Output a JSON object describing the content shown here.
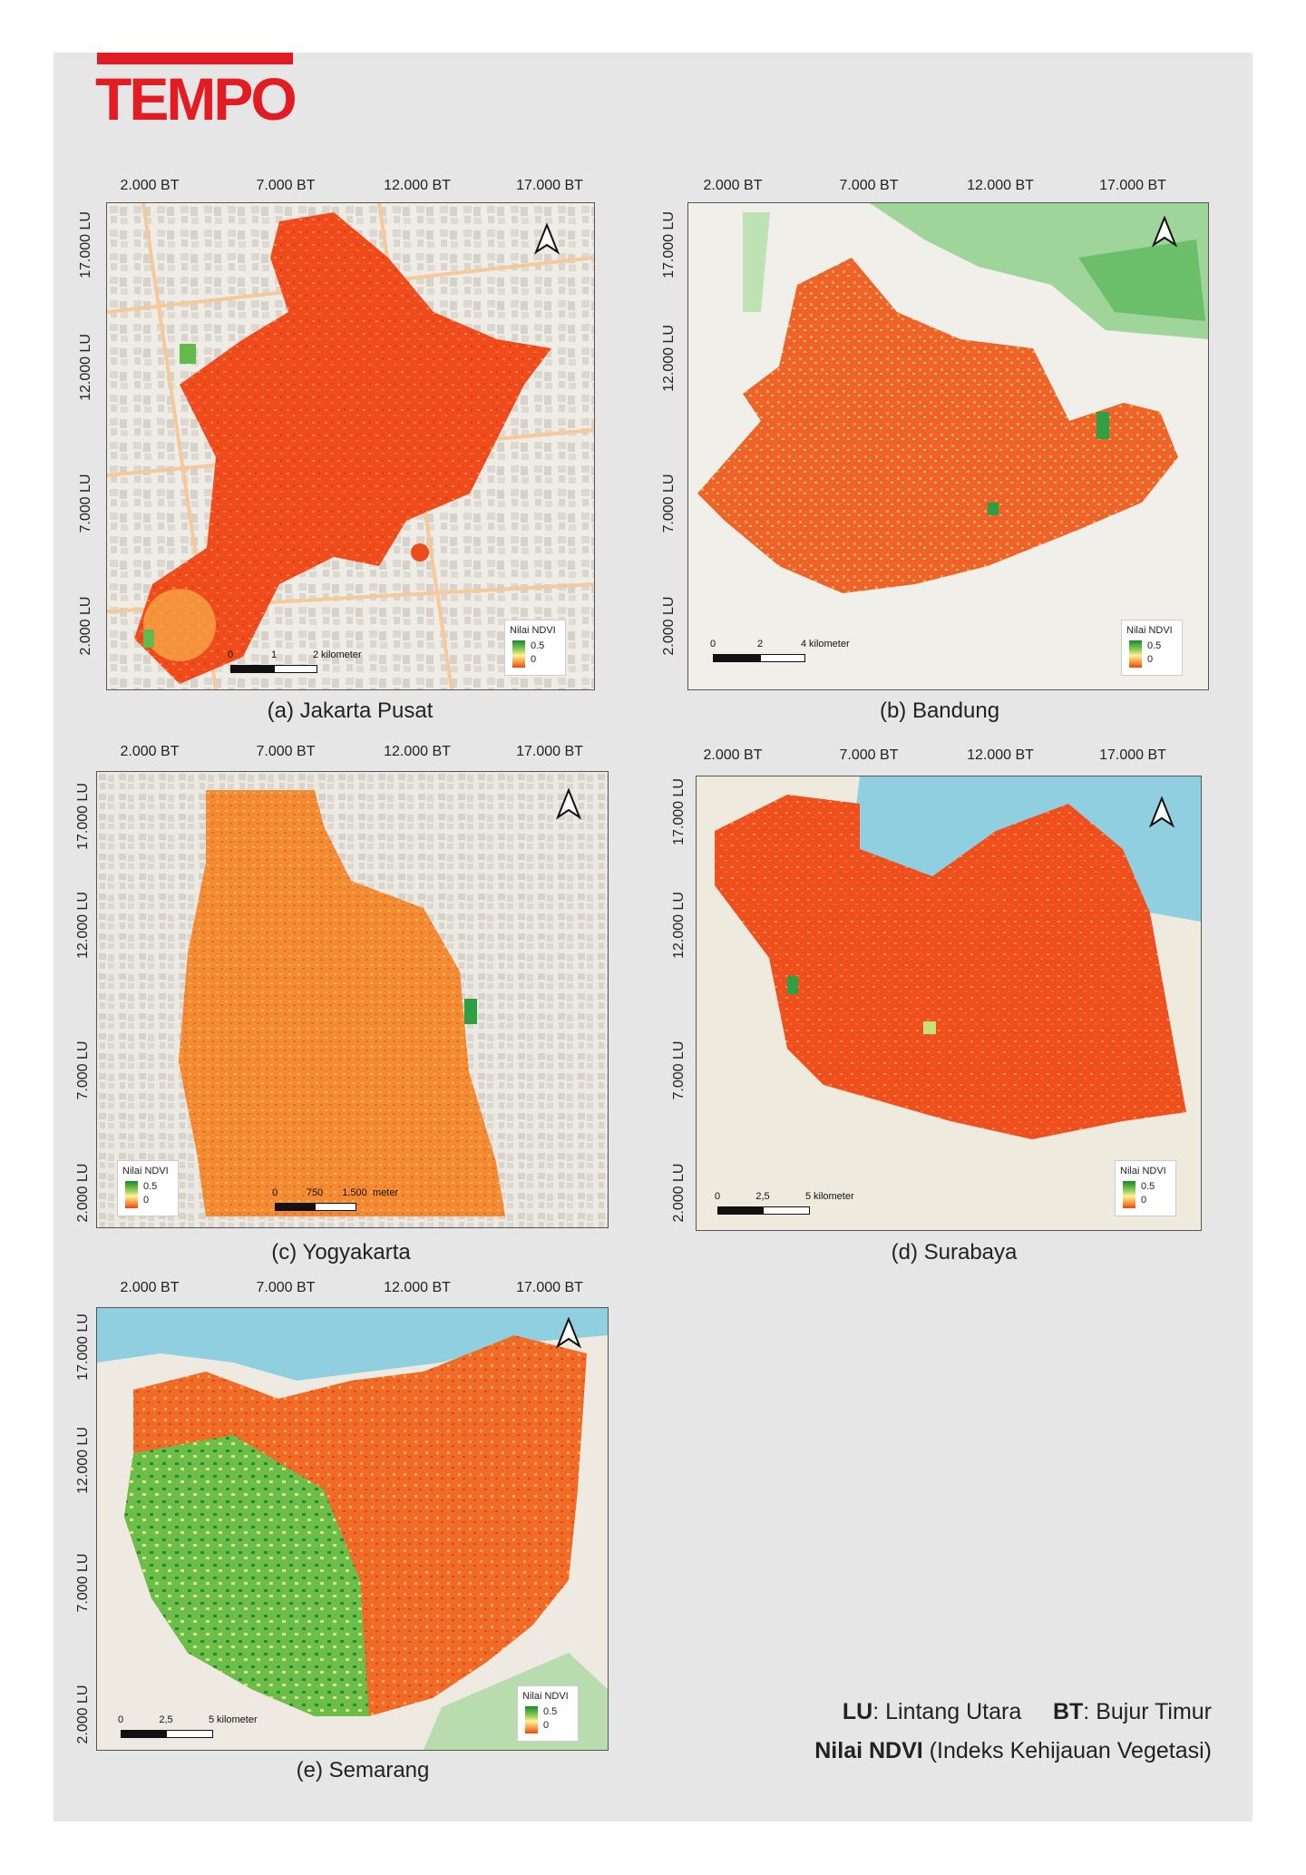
{
  "brand": {
    "logo_text": "TEMPO",
    "color": "#e31b23"
  },
  "maps": [
    {
      "id": "a",
      "caption": "(a) Jakarta Pusat",
      "bt": [
        "2.000 BT",
        "7.000 BT",
        "12.000 BT",
        "17.000 BT"
      ],
      "lu": [
        "17.000 LU",
        "12.000 LU",
        "7.000 LU",
        "2.000 LU"
      ],
      "legend": {
        "title": "Nilai NDVI",
        "high": "0.5",
        "low": "0"
      },
      "scale": {
        "ticks": [
          "0",
          "1",
          "2"
        ],
        "unit": "kilometer"
      }
    },
    {
      "id": "b",
      "caption": "(b) Bandung",
      "bt": [
        "2.000 BT",
        "7.000 BT",
        "12.000 BT",
        "17.000 BT"
      ],
      "lu": [
        "17.000 LU",
        "12.000 LU",
        "7.000 LU",
        "2.000 LU"
      ],
      "legend": {
        "title": "Nilai NDVI",
        "high": "0.5",
        "low": "0"
      },
      "scale": {
        "ticks": [
          "0",
          "2",
          "4"
        ],
        "unit": "kilometer"
      }
    },
    {
      "id": "c",
      "caption": "(c) Yogyakarta",
      "bt": [
        "2.000 BT",
        "7.000 BT",
        "12.000 BT",
        "17.000 BT"
      ],
      "lu": [
        "17.000 LU",
        "12.000 LU",
        "7.000 LU",
        "2.000 LU"
      ],
      "legend": {
        "title": "Nilai NDVI",
        "high": "0.5",
        "low": "0"
      },
      "scale": {
        "ticks": [
          "0",
          "750",
          "1.500"
        ],
        "unit": "meter"
      }
    },
    {
      "id": "d",
      "caption": "(d) Surabaya",
      "bt": [
        "2.000 BT",
        "7.000 BT",
        "12.000 BT",
        "17.000 BT"
      ],
      "lu": [
        "17.000 LU",
        "12.000 LU",
        "7.000 LU",
        "2.000 LU"
      ],
      "legend": {
        "title": "Nilai NDVI",
        "high": "0.5",
        "low": "0"
      },
      "scale": {
        "ticks": [
          "0",
          "2,5",
          "5"
        ],
        "unit": "kilometer"
      }
    },
    {
      "id": "e",
      "caption": "(e) Semarang",
      "bt": [
        "2.000 BT",
        "7.000 BT",
        "12.000 BT",
        "17.000 BT"
      ],
      "lu": [
        "17.000 LU",
        "12.000 LU",
        "7.000 LU",
        "2.000 LU"
      ],
      "legend": {
        "title": "Nilai NDVI",
        "high": "0.5",
        "low": "0"
      },
      "scale": {
        "ticks": [
          "0",
          "2,5",
          "5"
        ],
        "unit": "kilometer"
      }
    }
  ],
  "footer": {
    "lu_abbr": "LU",
    "lu_text": ": Lintang Utara",
    "bt_abbr": "BT",
    "bt_text": ": Bujur Timur",
    "ndvi_abbr": "Nilai NDVI",
    "ndvi_text": " (Indeks Kehijauan Vegetasi)"
  },
  "colors": {
    "ndvi_low": "#e8451c",
    "ndvi_mid": "#fff3a0",
    "ndvi_high": "#128a2a",
    "water": "#8fcfe0",
    "basemap": "#efece6"
  }
}
